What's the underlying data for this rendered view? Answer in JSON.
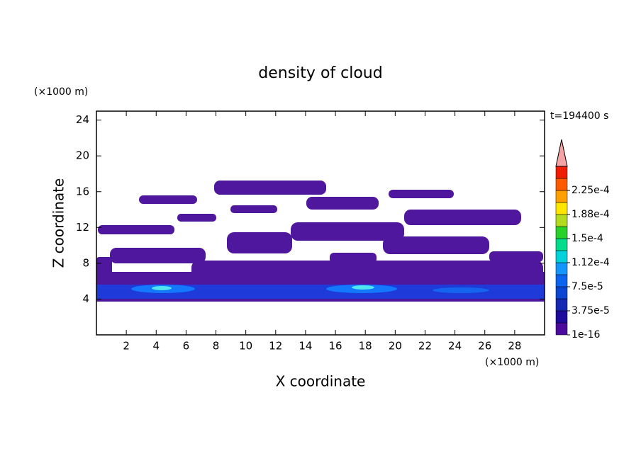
{
  "chart_data": {
    "type": "contour",
    "title": "density of cloud",
    "x_label": "X coordinate",
    "y_label": "Z coordinate",
    "x_unit": "(×1000 m)",
    "y_unit": "(×1000 m)",
    "annotation": "t=194400 s",
    "xlim": [
      0,
      30
    ],
    "ylim": [
      0,
      25
    ],
    "xticks": [
      2,
      4,
      6,
      8,
      10,
      12,
      14,
      16,
      18,
      20,
      22,
      24,
      26,
      28
    ],
    "yticks": [
      4,
      8,
      12,
      16,
      20,
      24
    ],
    "colorbar": {
      "colors": [
        "#4b0a9c",
        "#1e0a9c",
        "#1428b4",
        "#0a46d2",
        "#0a64f0",
        "#1496ff",
        "#00d2dc",
        "#00dc8c",
        "#28d228",
        "#b4dc1e",
        "#ffe600",
        "#ffa000",
        "#ff5a00",
        "#f01e00"
      ],
      "extend_color": "#f4a4a4",
      "ticks": [
        {
          "value": 1e-16,
          "label": "1e-16"
        },
        {
          "value": 3.75e-05,
          "label": "3.75e-5"
        },
        {
          "value": 7.5e-05,
          "label": "7.5e-5"
        },
        {
          "value": 0.000112,
          "label": "1.12e-4"
        },
        {
          "value": 0.00015,
          "label": "1.5e-4"
        },
        {
          "value": 0.000188,
          "label": "1.88e-4"
        },
        {
          "value": 0.000225,
          "label": "2.25e-4"
        }
      ]
    }
  }
}
